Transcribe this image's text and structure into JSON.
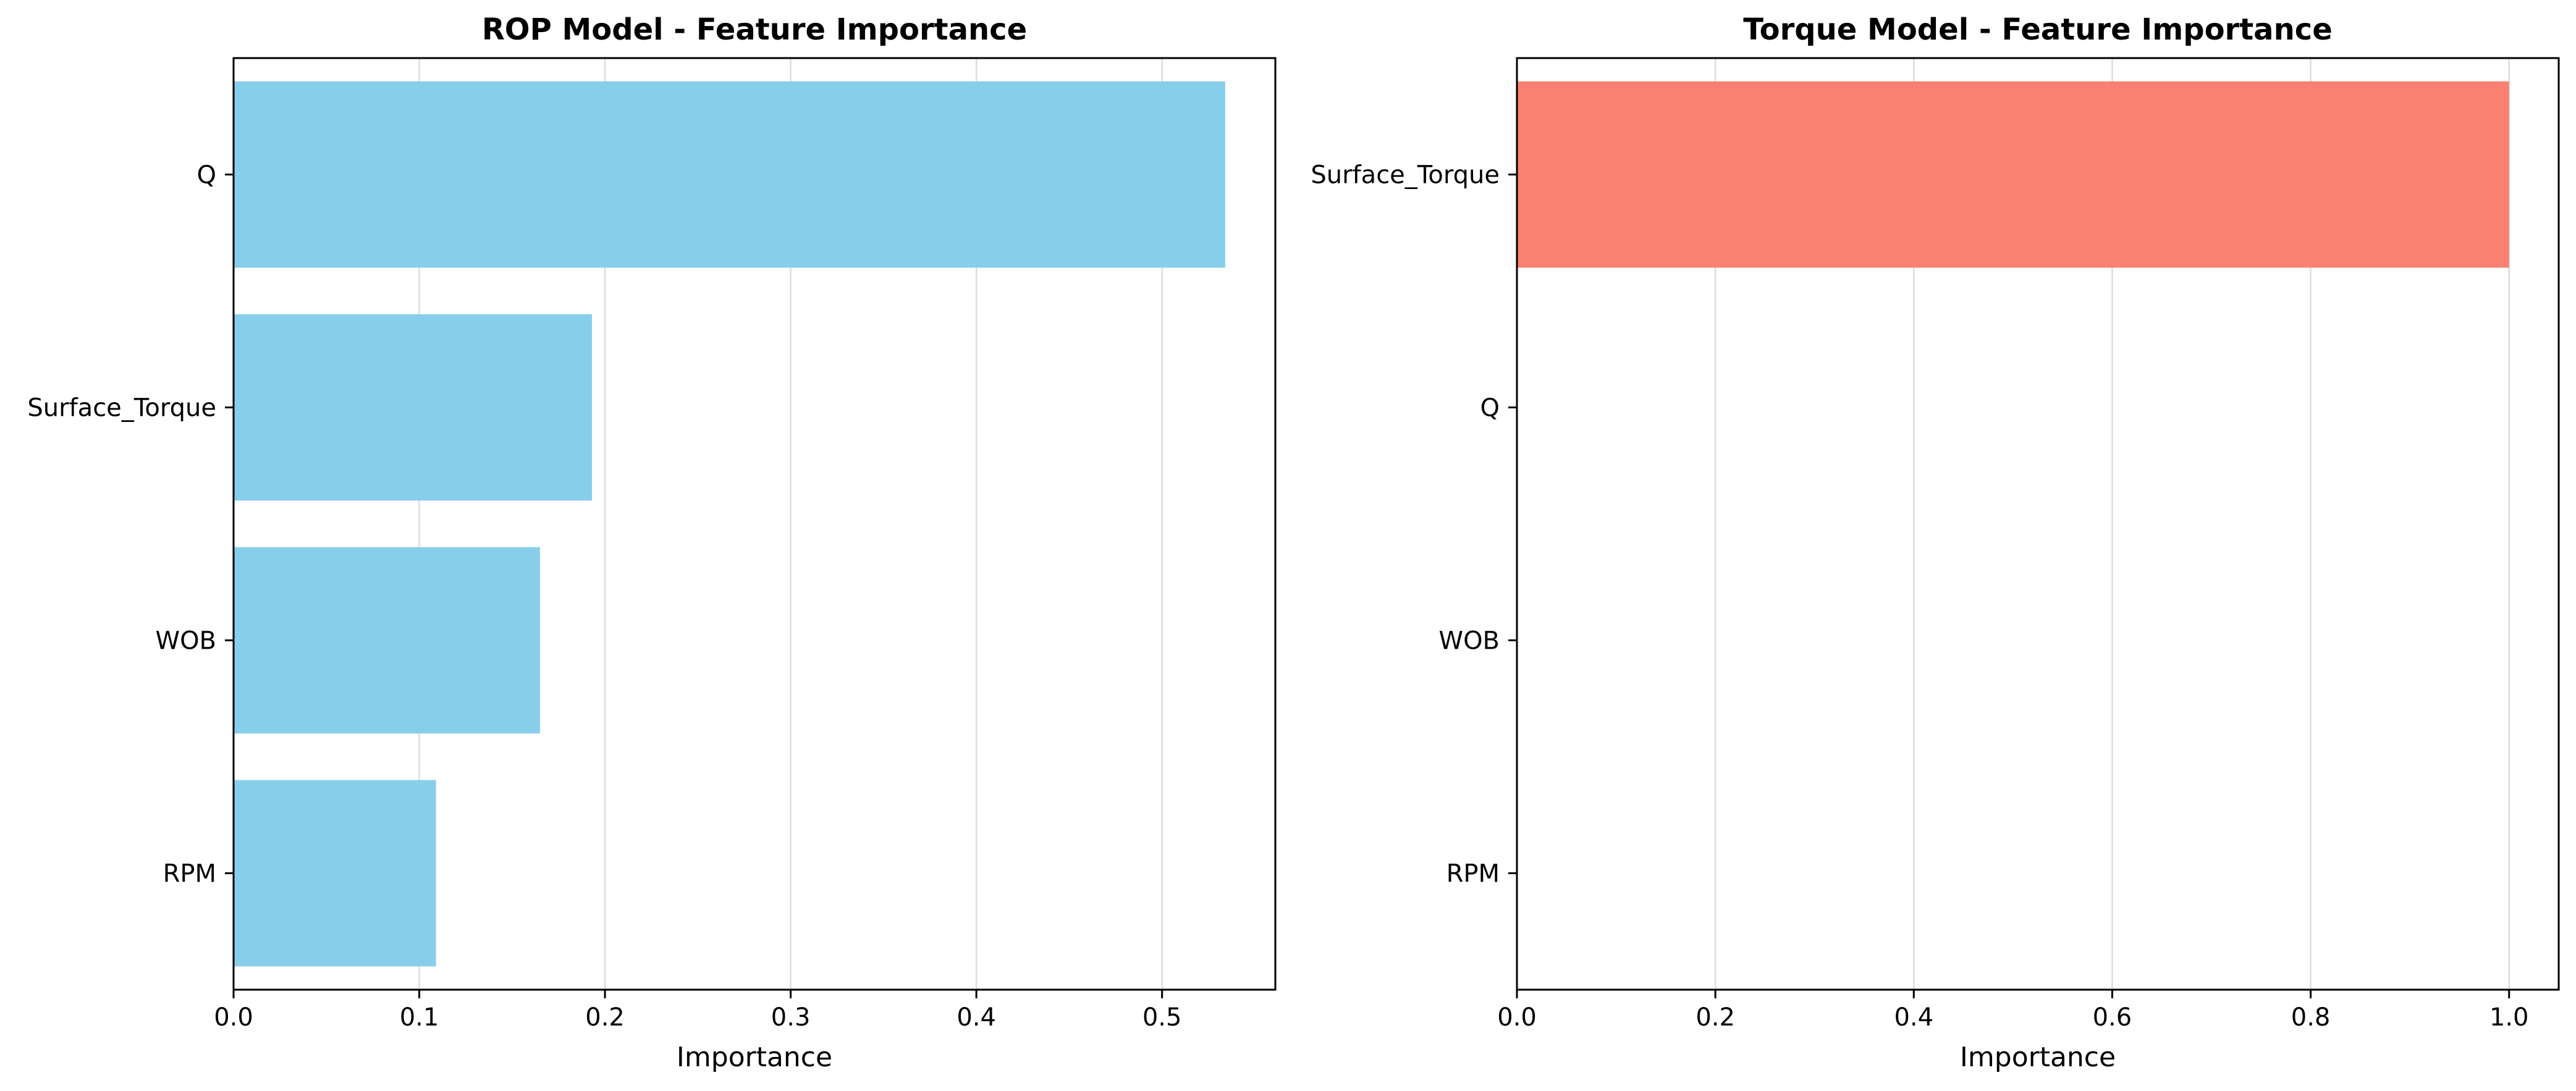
{
  "chart_data": [
    {
      "type": "bar",
      "orientation": "horizontal",
      "title": "ROP Model - Feature Importance",
      "xlabel": "Importance",
      "ylabel": "",
      "categories": [
        "Q",
        "Surface_Torque",
        "WOB",
        "RPM"
      ],
      "values": [
        0.534,
        0.193,
        0.165,
        0.109
      ],
      "xlim": [
        0,
        0.561
      ],
      "xticks": [
        0.0,
        0.1,
        0.2,
        0.3,
        0.4,
        0.5
      ],
      "xtick_labels": [
        "0.0",
        "0.1",
        "0.2",
        "0.3",
        "0.4",
        "0.5"
      ],
      "grid": "vertical",
      "legend": "none",
      "bar_color": "#87ceeb"
    },
    {
      "type": "bar",
      "orientation": "horizontal",
      "title": "Torque Model - Feature Importance",
      "xlabel": "Importance",
      "ylabel": "",
      "categories": [
        "Surface_Torque",
        "Q",
        "WOB",
        "RPM"
      ],
      "values": [
        1.0,
        0.0,
        0.0,
        0.0
      ],
      "xlim": [
        0,
        1.05
      ],
      "xticks": [
        0.0,
        0.2,
        0.4,
        0.6,
        0.8,
        1.0
      ],
      "xtick_labels": [
        "0.0",
        "0.2",
        "0.4",
        "0.6",
        "0.8",
        "1.0"
      ],
      "grid": "vertical",
      "legend": "none",
      "bar_color": "#fa8072"
    }
  ]
}
